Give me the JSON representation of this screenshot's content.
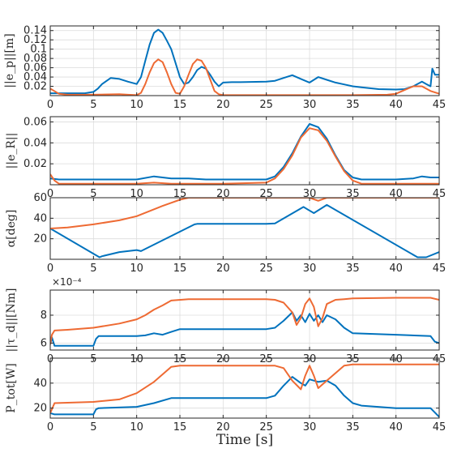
{
  "chart_data": [
    {
      "type": "line",
      "ylabel": "||e_p||[m]",
      "xlim": [
        0,
        45
      ],
      "ylim": [
        0,
        0.15
      ],
      "xticks": [
        0,
        5,
        10,
        15,
        20,
        25,
        30,
        35,
        40,
        45
      ],
      "yticks": [
        0.02,
        0.04,
        0.06,
        0.08,
        0.1,
        0.12,
        0.14
      ],
      "ytick_labels": [
        "0.02",
        "0.04",
        "0.06",
        "0.08",
        "0.1",
        "0.12",
        "0.14"
      ],
      "grid": true,
      "series": [
        {
          "color": "#0072BD",
          "x": [
            0,
            2,
            4,
            5,
            5.5,
            6,
            7,
            8,
            9,
            10,
            10.5,
            11,
            11.5,
            12,
            12.5,
            13,
            13.5,
            14,
            14.5,
            15,
            15.5,
            16,
            16.5,
            17,
            17.5,
            18,
            18.5,
            19,
            19.5,
            20,
            21,
            22,
            25,
            26,
            27,
            28,
            29,
            30,
            31,
            32,
            33,
            34,
            35,
            36,
            38,
            40,
            41,
            42,
            43,
            43.5,
            44,
            44.2,
            44.5,
            45
          ],
          "y": [
            0.005,
            0.005,
            0.005,
            0.008,
            0.015,
            0.025,
            0.038,
            0.036,
            0.03,
            0.025,
            0.04,
            0.075,
            0.11,
            0.135,
            0.142,
            0.135,
            0.118,
            0.1,
            0.07,
            0.04,
            0.025,
            0.028,
            0.04,
            0.055,
            0.062,
            0.058,
            0.045,
            0.03,
            0.02,
            0.028,
            0.029,
            0.029,
            0.03,
            0.032,
            0.038,
            0.044,
            0.036,
            0.028,
            0.04,
            0.034,
            0.028,
            0.024,
            0.02,
            0.018,
            0.014,
            0.013,
            0.014,
            0.02,
            0.03,
            0.025,
            0.02,
            0.058,
            0.045,
            0.045
          ]
        },
        {
          "color": "#EE6A33",
          "x": [
            0,
            1,
            2,
            5,
            8,
            9,
            10,
            10.5,
            11,
            11.5,
            12,
            12.5,
            13,
            13.5,
            14,
            14.5,
            15,
            15.5,
            16,
            16.5,
            17,
            17.5,
            18,
            18.5,
            19,
            19.5,
            20,
            25,
            30,
            35,
            39,
            40,
            41,
            42,
            43,
            44,
            45
          ],
          "y": [
            0.015,
            0.004,
            0.002,
            0.002,
            0.003,
            0.002,
            0.001,
            0.006,
            0.025,
            0.05,
            0.07,
            0.078,
            0.072,
            0.05,
            0.025,
            0.006,
            0.004,
            0.02,
            0.045,
            0.068,
            0.078,
            0.075,
            0.06,
            0.035,
            0.01,
            0.003,
            0.001,
            0.001,
            0.001,
            0.001,
            0.002,
            0.004,
            0.012,
            0.02,
            0.02,
            0.01,
            0.004
          ]
        }
      ]
    },
    {
      "type": "line",
      "ylabel": "||e_R||",
      "xlim": [
        0,
        45
      ],
      "ylim": [
        0,
        0.065
      ],
      "xticks": [
        0,
        5,
        10,
        15,
        20,
        25,
        30,
        35,
        40,
        45
      ],
      "yticks": [
        0.02,
        0.04,
        0.06
      ],
      "ytick_labels": [
        "0.02",
        "0.04",
        "0.06"
      ],
      "grid": true,
      "series": [
        {
          "color": "#0072BD",
          "x": [
            0,
            1,
            2,
            5,
            8,
            10,
            12,
            14,
            16,
            18,
            20,
            22,
            24,
            25,
            26,
            27,
            28,
            29,
            30,
            31,
            32,
            33,
            34,
            35,
            36,
            38,
            40,
            42,
            43,
            44,
            45
          ],
          "y": [
            0.006,
            0.005,
            0.005,
            0.005,
            0.005,
            0.005,
            0.008,
            0.006,
            0.006,
            0.005,
            0.005,
            0.005,
            0.005,
            0.005,
            0.008,
            0.017,
            0.03,
            0.046,
            0.058,
            0.055,
            0.044,
            0.028,
            0.014,
            0.007,
            0.005,
            0.005,
            0.005,
            0.006,
            0.008,
            0.007,
            0.007
          ]
        },
        {
          "color": "#EE6A33",
          "x": [
            0,
            0.5,
            1,
            5,
            10,
            12,
            14,
            16,
            20,
            25,
            26,
            27,
            28,
            29,
            30,
            31,
            32,
            33,
            34,
            35,
            36,
            40,
            45
          ],
          "y": [
            0.01,
            0.004,
            0.001,
            0.001,
            0.001,
            0.002,
            0.001,
            0.001,
            0.001,
            0.002,
            0.006,
            0.015,
            0.028,
            0.045,
            0.054,
            0.052,
            0.042,
            0.027,
            0.013,
            0.004,
            0.001,
            0.001,
            0.001
          ]
        }
      ]
    },
    {
      "type": "line",
      "ylabel": "α[deg]",
      "xlim": [
        0,
        45
      ],
      "ylim": [
        0,
        60
      ],
      "xticks": [
        0,
        5,
        10,
        15,
        20,
        25,
        30,
        35,
        40,
        45
      ],
      "yticks": [
        20,
        40,
        60
      ],
      "ytick_labels": [
        "20",
        "40",
        "60"
      ],
      "grid": true,
      "series": [
        {
          "color": "#0072BD",
          "x": [
            0,
            5.7,
            6,
            8,
            10,
            10.5,
            16.7,
            17,
            20,
            25,
            26,
            29.3,
            30.5,
            32,
            42.5,
            43.5,
            45
          ],
          "y": [
            30,
            2,
            3,
            7,
            9,
            8,
            34,
            34.5,
            34.5,
            34.5,
            35,
            51,
            45,
            53,
            2,
            2,
            7
          ]
        },
        {
          "color": "#EE6A33",
          "x": [
            0,
            2,
            5,
            8,
            10,
            13,
            14,
            15,
            16,
            20,
            25,
            28,
            30,
            31,
            32,
            33,
            35,
            40,
            45
          ],
          "y": [
            30,
            31,
            34,
            38,
            42,
            52,
            55,
            58,
            60,
            60,
            60,
            60,
            60,
            57,
            60,
            60,
            60,
            60,
            60
          ]
        }
      ]
    },
    {
      "type": "line",
      "ylabel": "||τ_d||[Nm]",
      "exponent_label": "×10⁻⁴",
      "xlim": [
        0,
        45
      ],
      "ylim": [
        5.5,
        9.8
      ],
      "xticks": [
        0,
        5,
        10,
        15,
        20,
        25,
        30,
        35,
        40,
        45
      ],
      "yticks": [
        6,
        8
      ],
      "ytick_labels": [
        "6",
        "8"
      ],
      "grid": true,
      "series": [
        {
          "color": "#0072BD",
          "x": [
            0,
            0.2,
            0.5,
            5,
            5.3,
            5.6,
            10,
            11,
            12,
            13,
            14,
            15,
            16,
            20,
            25,
            26,
            27,
            28,
            28.5,
            29,
            29.5,
            30,
            30.5,
            31,
            31.5,
            32,
            33,
            34,
            35,
            40,
            44,
            44.5,
            45
          ],
          "y": [
            5.9,
            6.4,
            5.8,
            5.8,
            6.3,
            6.5,
            6.5,
            6.55,
            6.7,
            6.6,
            6.8,
            7.0,
            7.0,
            7.0,
            7.0,
            7.1,
            7.6,
            8.2,
            7.6,
            8.0,
            7.5,
            8.1,
            7.6,
            8.0,
            7.5,
            8.0,
            7.7,
            7.1,
            6.7,
            6.6,
            6.5,
            6.1,
            6.0
          ]
        },
        {
          "color": "#EE6A33",
          "x": [
            0,
            0.2,
            0.5,
            2,
            5,
            8,
            10,
            11,
            12,
            13,
            14,
            16,
            20,
            25,
            26,
            27,
            28,
            28.5,
            29,
            29.5,
            30,
            30.5,
            31,
            31.5,
            32,
            33,
            34,
            35,
            40,
            44,
            45
          ],
          "y": [
            5.9,
            6.6,
            6.9,
            6.95,
            7.1,
            7.4,
            7.7,
            8.0,
            8.4,
            8.7,
            9.05,
            9.15,
            9.15,
            9.15,
            9.1,
            8.9,
            8.2,
            7.3,
            7.8,
            8.8,
            9.2,
            8.6,
            7.2,
            7.8,
            8.8,
            9.1,
            9.15,
            9.2,
            9.25,
            9.25,
            9.1
          ]
        }
      ]
    },
    {
      "type": "line",
      "ylabel": "P_tot[W]",
      "xlim": [
        0,
        45
      ],
      "ylim": [
        12,
        60
      ],
      "xticks": [
        0,
        5,
        10,
        15,
        20,
        25,
        30,
        35,
        40,
        45
      ],
      "xtick_labels": [
        "0",
        "5",
        "10",
        "15",
        "20",
        "25",
        "30",
        "35",
        "40",
        "45"
      ],
      "xlabel": "Time [s]",
      "yticks": [
        20,
        40
      ],
      "ytick_labels": [
        "20",
        "40"
      ],
      "grid": true,
      "series": [
        {
          "color": "#0072BD",
          "x": [
            0,
            0.5,
            5,
            5.3,
            5.6,
            10,
            12,
            14,
            15,
            20,
            25,
            26,
            27,
            28,
            29,
            29.5,
            30,
            31,
            32,
            33,
            34,
            35,
            36,
            40,
            44,
            45
          ],
          "y": [
            16,
            15,
            15,
            19,
            20,
            21,
            24,
            28,
            28,
            28,
            28,
            30,
            38,
            45,
            40,
            38,
            43,
            41,
            42,
            38,
            30,
            24,
            22,
            20,
            20,
            13
          ]
        },
        {
          "color": "#EE6A33",
          "x": [
            0,
            0.5,
            5,
            8,
            10,
            12,
            14,
            15,
            20,
            25,
            26,
            27,
            28,
            29,
            29.5,
            30,
            30.5,
            31,
            32,
            33,
            34,
            35,
            36,
            40,
            44,
            45
          ],
          "y": [
            16,
            24,
            25,
            27,
            32,
            41,
            53,
            54,
            54,
            54,
            54,
            52,
            42,
            35,
            46,
            54,
            46,
            36,
            42,
            48,
            54,
            55,
            55,
            55,
            55,
            55
          ]
        }
      ]
    }
  ]
}
